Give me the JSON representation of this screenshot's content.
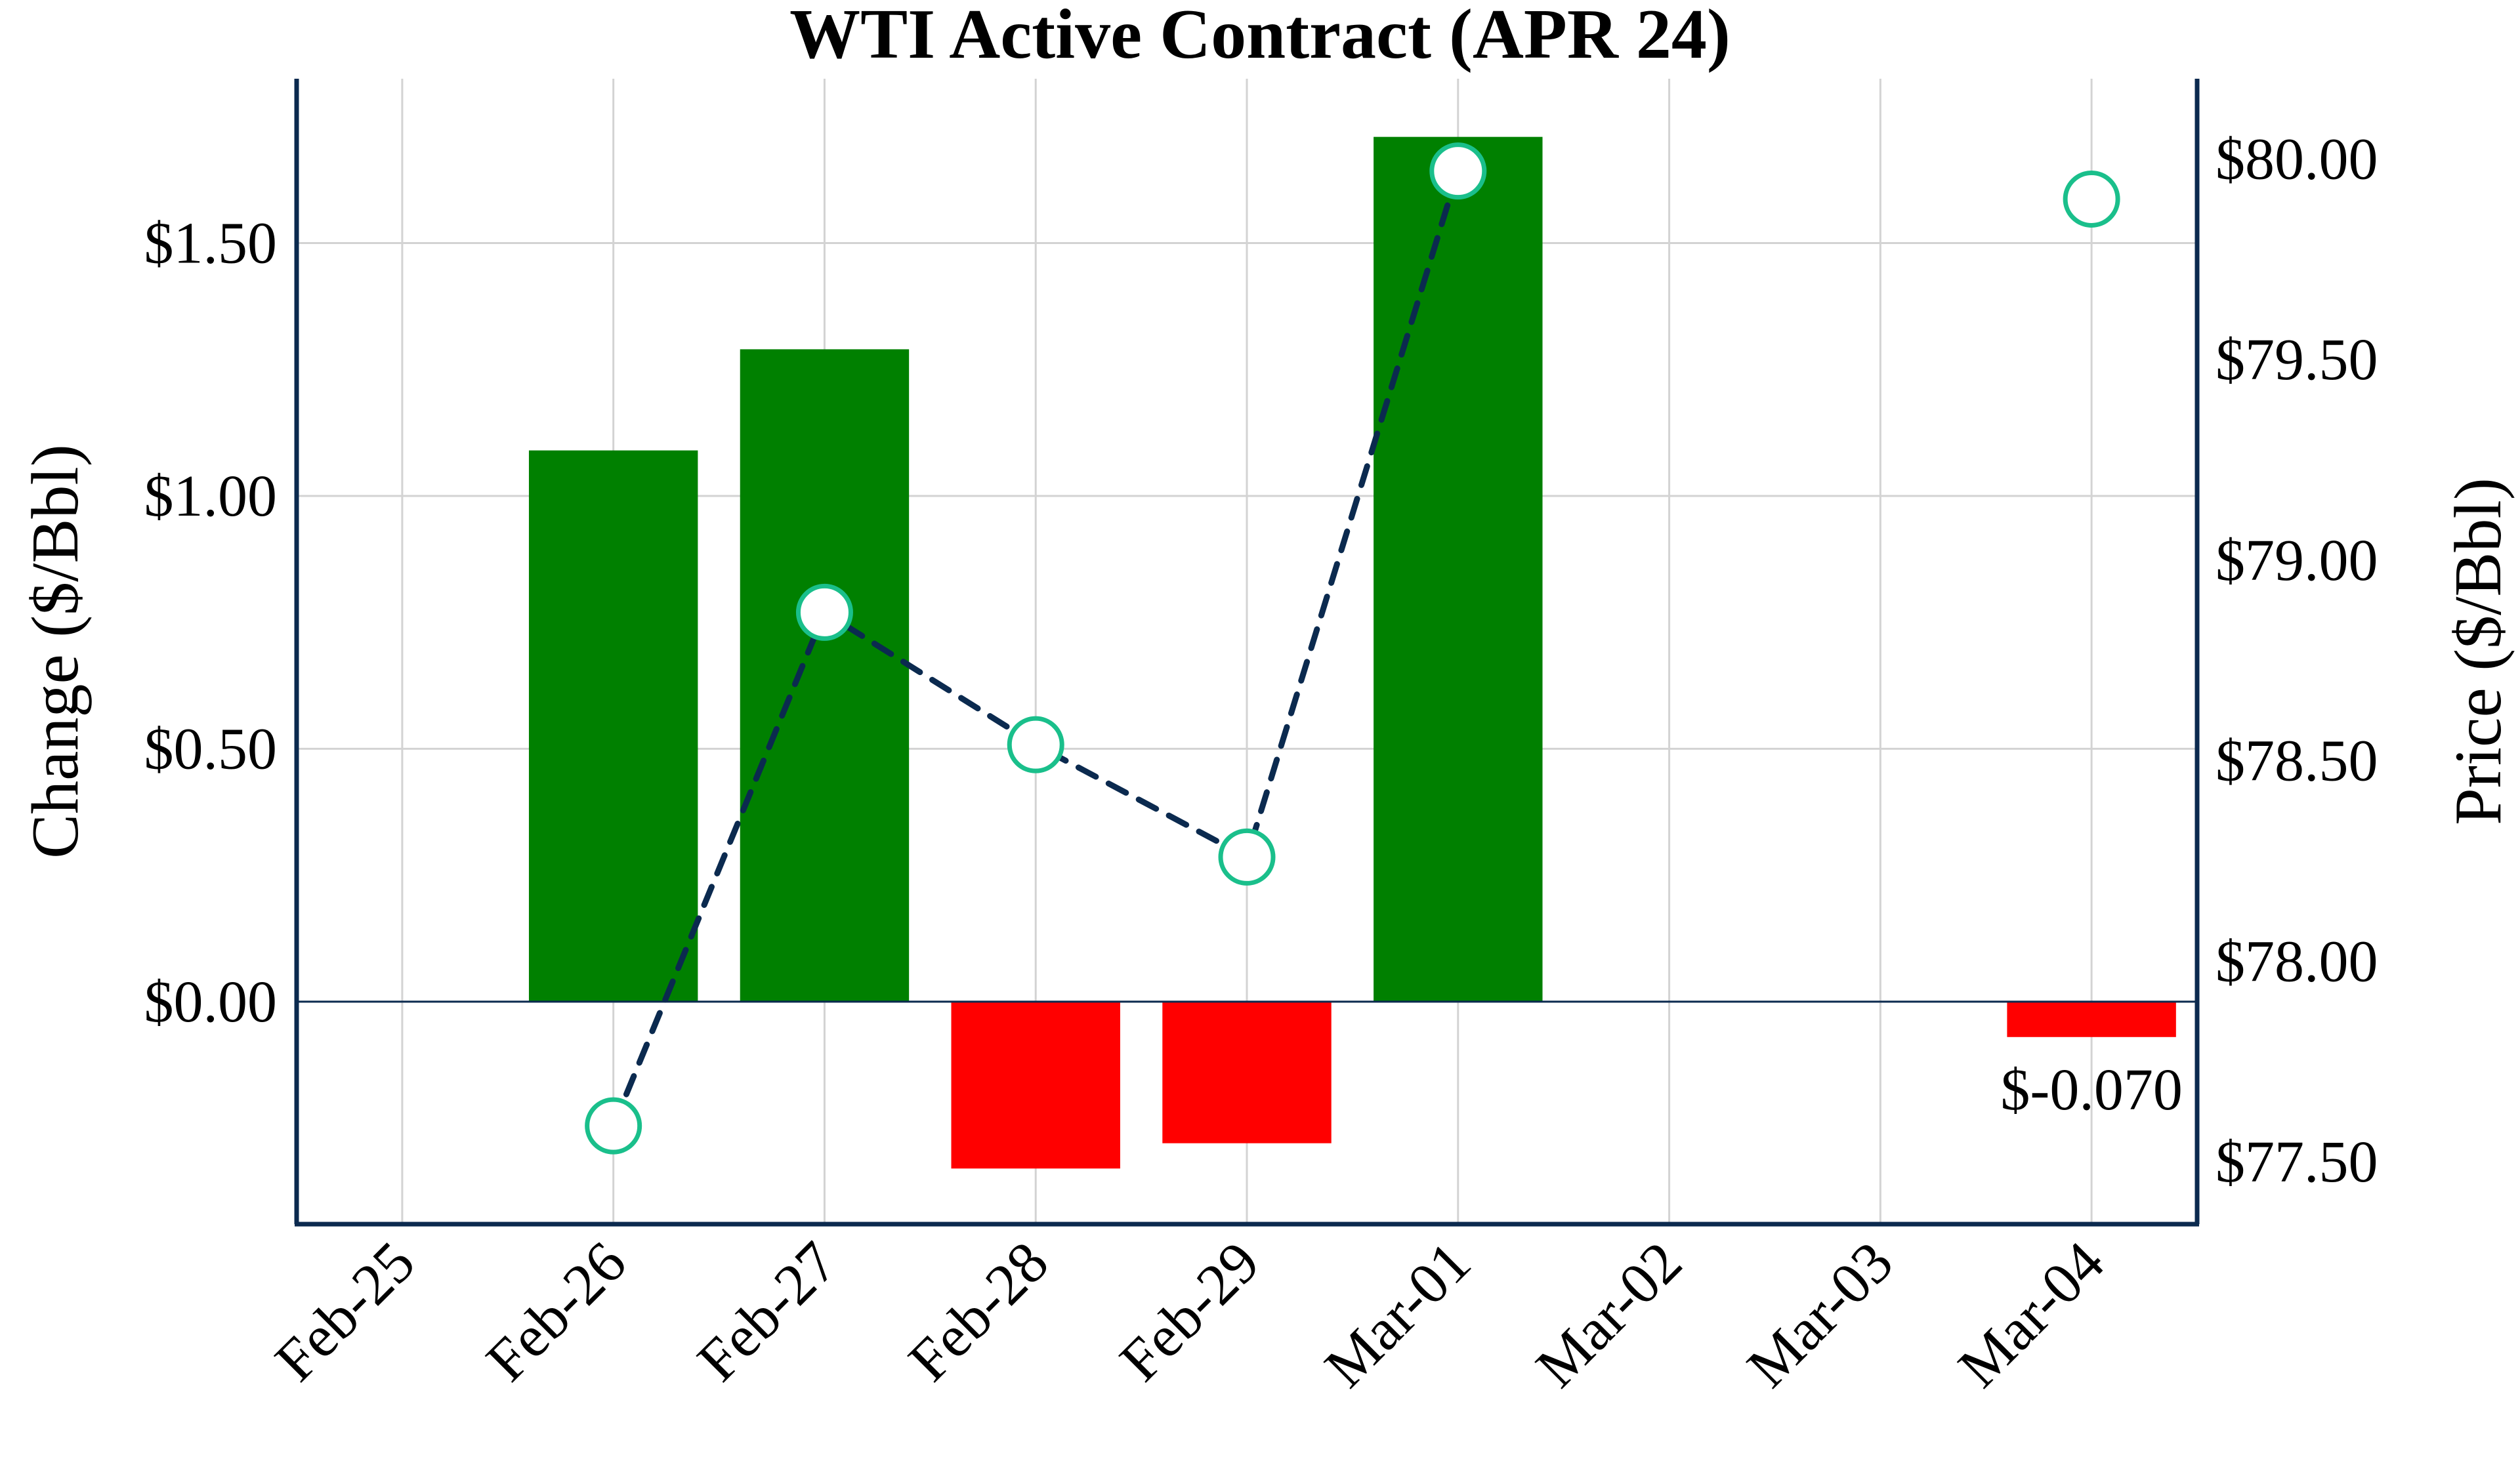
{
  "chart_data": {
    "type": "bar",
    "title": "WTI Active Contract (APR 24)",
    "xlabel": "",
    "ylabel": "Change ($/Bbl)",
    "y2label": "Price ($/Bbl)",
    "categories": [
      "Feb-25",
      "Feb-26",
      "Feb-27",
      "Feb-28",
      "Feb-29",
      "Mar-01",
      "Mar-02",
      "Mar-03",
      "Mar-04"
    ],
    "ylim": [
      -0.44,
      1.825
    ],
    "yticks": [
      0.0,
      0.5,
      1.0,
      1.5
    ],
    "ytick_labels": [
      "$0.00",
      "$0.50",
      "$1.00",
      "$1.50"
    ],
    "y2lim": [
      77.345,
      80.2
    ],
    "y2ticks": [
      77.5,
      78.0,
      78.5,
      79.0,
      79.5,
      80.0
    ],
    "y2tick_labels": [
      "$77.50",
      "$78.00",
      "$78.50",
      "$79.00",
      "$79.50",
      "$80.00"
    ],
    "grid": true,
    "series": [
      {
        "name": "Change",
        "type": "bar",
        "axis": "left",
        "values": [
          null,
          1.09,
          1.29,
          -0.33,
          -0.28,
          1.71,
          null,
          null,
          -0.07
        ]
      },
      {
        "name": "Price",
        "type": "line",
        "axis": "right",
        "values": [
          null,
          77.59,
          78.87,
          78.54,
          78.26,
          79.97,
          null,
          null,
          79.9
        ]
      }
    ],
    "annotations": [
      {
        "category": "Mar-04",
        "text": "$-0.070"
      }
    ],
    "colors": {
      "positive_bar": "#008000",
      "negative_bar": "#ff0000",
      "line": "#0b2a4f",
      "marker_edge": "#1abf8b",
      "marker_fill": "#ffffff",
      "axis": "#0b2a4f",
      "zero_line": "#0b2a4f",
      "grid": "#d3d3d3"
    }
  }
}
